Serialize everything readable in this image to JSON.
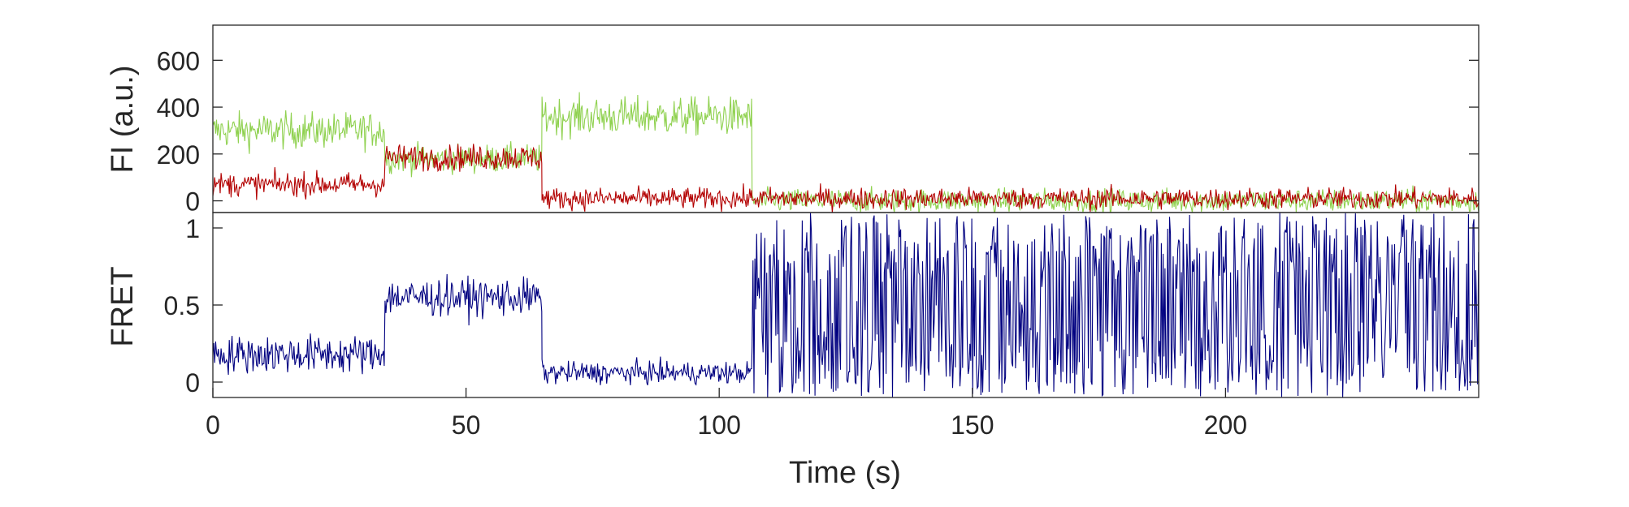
{
  "chart_data": [
    {
      "type": "line",
      "ylabel": "FI (a.u.)",
      "xlim": [
        0,
        250
      ],
      "ylim": [
        -50,
        750
      ],
      "yticks": [
        0,
        200,
        400,
        600
      ],
      "series": [
        {
          "color": "#8fd14f",
          "segments": [
            {
              "x": [
                0,
                34
              ],
              "mean": 300,
              "noise": 75
            },
            {
              "x": [
                34,
                65
              ],
              "mean": 180,
              "noise": 60
            },
            {
              "x": [
                65,
                106.5
              ],
              "mean": 360,
              "noise": 80
            },
            {
              "x": [
                106.5,
                250
              ],
              "mean": 0,
              "noise": 50
            }
          ]
        },
        {
          "color": "#b30000",
          "segments": [
            {
              "x": [
                0,
                34
              ],
              "mean": 70,
              "noise": 50
            },
            {
              "x": [
                34,
                65
              ],
              "mean": 185,
              "noise": 55
            },
            {
              "x": [
                65,
                106.5
              ],
              "mean": 10,
              "noise": 45
            },
            {
              "x": [
                106.5,
                250
              ],
              "mean": 10,
              "noise": 45
            }
          ]
        }
      ]
    },
    {
      "type": "line",
      "ylabel": "FRET",
      "xlabel": "Time (s)",
      "xlim": [
        0,
        250
      ],
      "ylim": [
        -0.1,
        1.1
      ],
      "yticks": [
        0,
        0.5,
        1
      ],
      "xticks": [
        0,
        50,
        100,
        150,
        200
      ],
      "series": [
        {
          "color": "#000080",
          "segments": [
            {
              "x": [
                0,
                34
              ],
              "mean": 0.18,
              "noise": 0.12
            },
            {
              "x": [
                34,
                65
              ],
              "mean": 0.55,
              "noise": 0.12
            },
            {
              "x": [
                65,
                106.5
              ],
              "mean": 0.06,
              "noise": 0.07
            },
            {
              "x": [
                106.5,
                250
              ],
              "mean": 0.5,
              "noise": 1.0
            }
          ]
        }
      ]
    }
  ]
}
